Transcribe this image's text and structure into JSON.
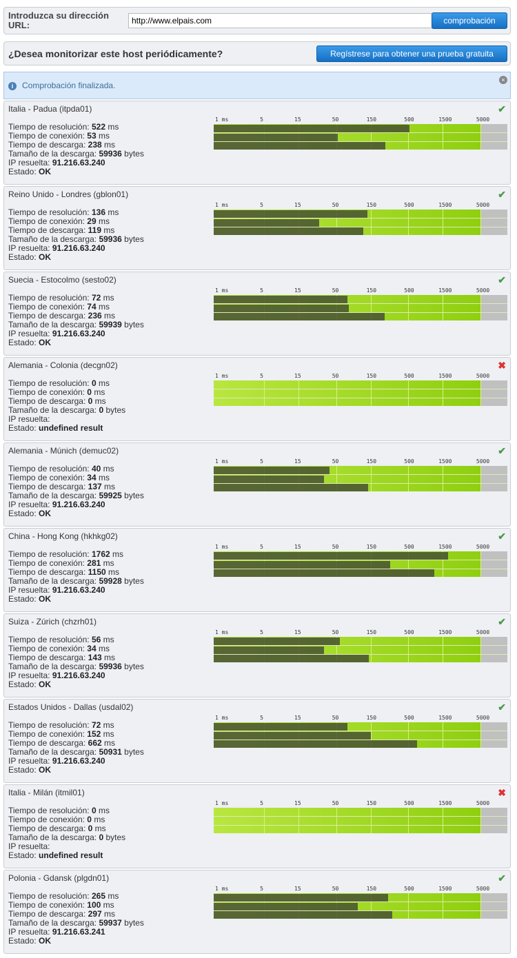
{
  "form": {
    "url_label": "Introduzca su dirección URL:",
    "url_value": "http://www.elpais.com",
    "check_button": "comprobación"
  },
  "monitor": {
    "question": "¿Desea monitorizar este host periódicamente?",
    "register_button": "Regístrese para obtener una prueba gratuita"
  },
  "info": {
    "message": "Comprobación finalizada.",
    "icon": "info-icon",
    "close_icon": "close-icon"
  },
  "labels": {
    "resolution": "Tiempo de resolución:",
    "connection": "Tiempo de conexión:",
    "download": "Tiempo de descarga:",
    "size": "Tamaño de la descarga:",
    "ip": "IP resuelta:",
    "status": "Estado:",
    "ms": "ms",
    "bytes": "bytes"
  },
  "scale": {
    "type": "log",
    "ticks": [
      "1 ms",
      "5",
      "15",
      "50",
      "150",
      "500",
      "1500",
      "5000"
    ],
    "tick_values": [
      1,
      5,
      15,
      50,
      150,
      500,
      1500,
      5000
    ]
  },
  "colors": {
    "ok": "#4a9a4a",
    "error": "#dd3333",
    "bar": "#46502f",
    "accent": "#1670c4"
  },
  "locations": [
    {
      "name": "Italia - Padua (itpda01)",
      "resolution": 522,
      "connection": 53,
      "download": 238,
      "size": 59936,
      "ip": "91.216.63.240",
      "status": "OK",
      "ok": true
    },
    {
      "name": "Reino Unido - Londres (gblon01)",
      "resolution": 136,
      "connection": 29,
      "download": 119,
      "size": 59936,
      "ip": "91.216.63.240",
      "status": "OK",
      "ok": true
    },
    {
      "name": "Suecia - Estocolmo (sesto02)",
      "resolution": 72,
      "connection": 74,
      "download": 236,
      "size": 59939,
      "ip": "91.216.63.240",
      "status": "OK",
      "ok": true
    },
    {
      "name": "Alemania - Colonia (decgn02)",
      "resolution": 0,
      "connection": 0,
      "download": 0,
      "size": 0,
      "ip": "",
      "status": "undefined result",
      "ok": false
    },
    {
      "name": "Alemania - Múnich (demuc02)",
      "resolution": 40,
      "connection": 34,
      "download": 137,
      "size": 59925,
      "ip": "91.216.63.240",
      "status": "OK",
      "ok": true
    },
    {
      "name": "China - Hong Kong (hkhkg02)",
      "resolution": 1762,
      "connection": 281,
      "download": 1150,
      "size": 59928,
      "ip": "91.216.63.240",
      "status": "OK",
      "ok": true
    },
    {
      "name": "Suiza - Zúrich (chzrh01)",
      "resolution": 56,
      "connection": 34,
      "download": 143,
      "size": 59936,
      "ip": "91.216.63.240",
      "status": "OK",
      "ok": true
    },
    {
      "name": "Estados Unidos - Dallas (usdal02)",
      "resolution": 72,
      "connection": 152,
      "download": 662,
      "size": 50931,
      "ip": "91.216.63.240",
      "status": "OK",
      "ok": true
    },
    {
      "name": "Italia - Milán (itmil01)",
      "resolution": 0,
      "connection": 0,
      "download": 0,
      "size": 0,
      "ip": "",
      "status": "undefined result",
      "ok": false
    },
    {
      "name": "Polonia - Gdansk (plgdn01)",
      "resolution": 265,
      "connection": 100,
      "download": 297,
      "size": 59937,
      "ip": "91.216.63.241",
      "status": "OK",
      "ok": true
    }
  ]
}
